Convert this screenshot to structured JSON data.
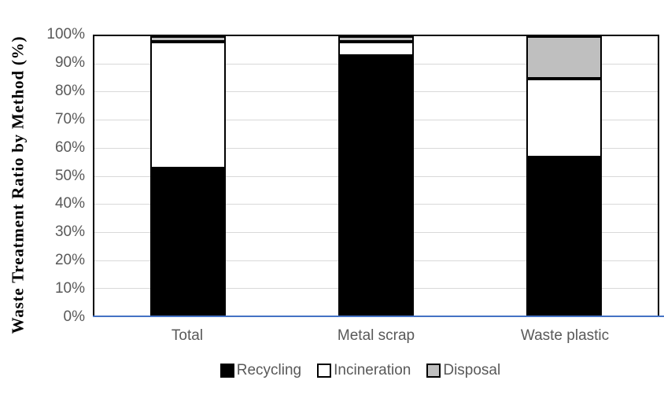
{
  "chart_data": {
    "type": "bar",
    "stacked": true,
    "stacked_mode": "percent",
    "title": "",
    "xlabel": "",
    "ylabel": "Waste Treatment Ratio by Method (%)",
    "categories": [
      "Total",
      "Metal scrap",
      "Waste plastic"
    ],
    "series": [
      {
        "name": "Recycling",
        "color": "#000000",
        "values": [
          53,
          93,
          57
        ]
      },
      {
        "name": "Incineration",
        "color": "#ffffff",
        "values": [
          45,
          5,
          28
        ]
      },
      {
        "name": "Disposal",
        "color": "#bfbfbf",
        "values": [
          2,
          2,
          15
        ]
      }
    ],
    "ylim": [
      0,
      100
    ],
    "ytick_step": 10,
    "ytick_labels": [
      "0%",
      "10%",
      "20%",
      "30%",
      "40%",
      "50%",
      "60%",
      "70%",
      "80%",
      "90%",
      "100%"
    ],
    "grid": true,
    "legend_position": "bottom",
    "colors": {
      "gridline": "#d9d9d9",
      "x_axis_line": "#4472c4",
      "plot_border": "#000000",
      "tick_label": "#595959",
      "axis_title": "#000000"
    }
  }
}
